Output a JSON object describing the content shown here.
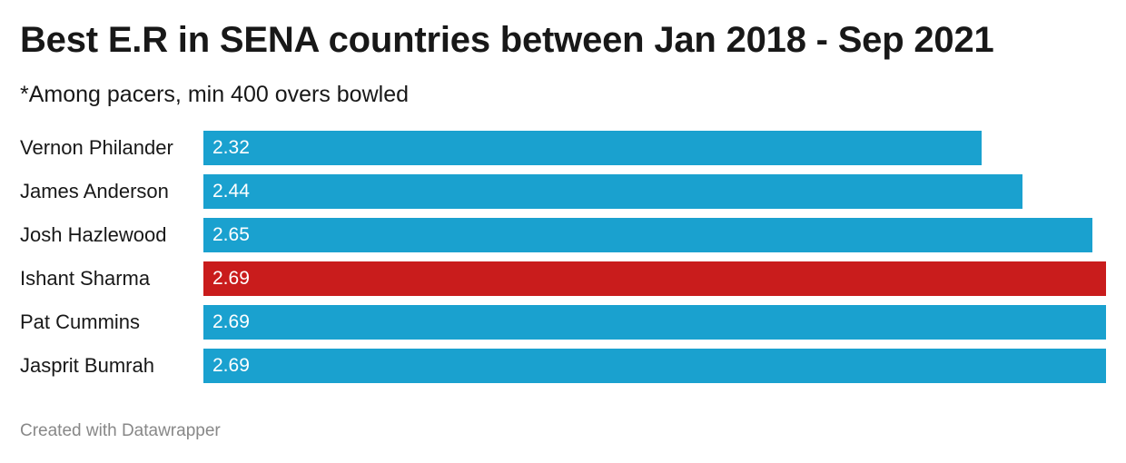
{
  "header": {
    "title": "Best E.R in SENA countries between Jan 2018 - Sep 2021",
    "subtitle": "*Among pacers, min 400 overs bowled"
  },
  "footer": {
    "credit": "Created with Datawrapper"
  },
  "colors": {
    "default_bar": "#1aa1cf",
    "highlight_bar": "#c91c1c"
  },
  "chart_data": {
    "type": "bar",
    "orientation": "horizontal",
    "title": "Best E.R in SENA countries between Jan 2018 - Sep 2021",
    "subtitle": "*Among pacers, min 400 overs bowled",
    "categories": [
      "Vernon Philander",
      "James Anderson",
      "Josh Hazlewood",
      "Ishant Sharma",
      "Pat Cummins",
      "Jasprit Bumrah"
    ],
    "values": [
      2.32,
      2.44,
      2.65,
      2.69,
      2.69,
      2.69
    ],
    "value_labels": [
      "2.32",
      "2.44",
      "2.65",
      "2.69",
      "2.69",
      "2.69"
    ],
    "highlighted": "Ishant Sharma",
    "xlim": [
      0,
      2.69
    ],
    "grid": false,
    "legend": "none"
  }
}
